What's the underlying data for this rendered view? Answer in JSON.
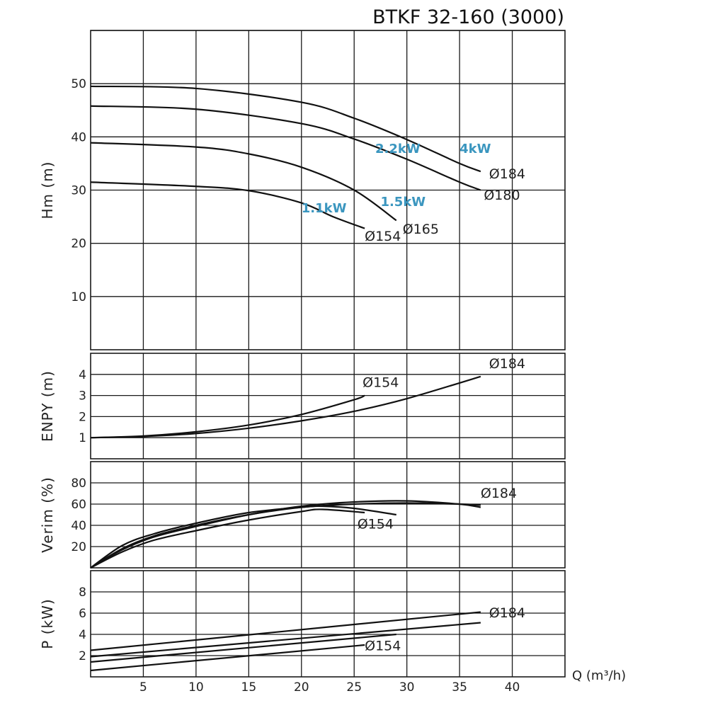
{
  "title": "BTKF 32-160 (3000)",
  "x_axis_label": "Q (m³/h)",
  "x_ticks": [
    5,
    10,
    15,
    20,
    25,
    30,
    35,
    40
  ],
  "colors": {
    "kw_label": "#3b96bf",
    "curve": "#111111",
    "grid": "#1a1a1a"
  },
  "chart_data": [
    {
      "id": "head",
      "type": "line",
      "ylabel": "Hm (m)",
      "xlim": [
        0,
        45
      ],
      "ylim": [
        0,
        60
      ],
      "grid": true,
      "y_ticks": [
        10,
        20,
        30,
        40,
        50
      ],
      "series": [
        {
          "name": "Ø 184",
          "x": [
            0,
            10,
            20,
            25,
            30,
            35,
            37
          ],
          "y": [
            49.5,
            49.1,
            46.5,
            43.5,
            39.5,
            35.0,
            33.5
          ]
        },
        {
          "name": "Ø 180",
          "x": [
            0,
            10,
            20,
            25,
            30,
            35,
            37
          ],
          "y": [
            45.8,
            45.2,
            42.5,
            39.6,
            35.8,
            31.5,
            30.0
          ]
        },
        {
          "name": "Ø 165",
          "x": [
            0,
            10,
            15,
            20,
            25,
            29
          ],
          "y": [
            38.9,
            38.1,
            36.8,
            34.3,
            30.0,
            24.3
          ]
        },
        {
          "name": "Ø 154",
          "x": [
            0,
            10,
            15,
            20,
            23,
            26
          ],
          "y": [
            31.5,
            30.7,
            29.9,
            27.6,
            25.0,
            22.8
          ]
        }
      ],
      "curve_labels": [
        {
          "text": "Ø184",
          "x": 37.8,
          "y": 32.2
        },
        {
          "text": "Ø180",
          "x": 37.3,
          "y": 28.2
        },
        {
          "text": "Ø165",
          "x": 29.6,
          "y": 21.8
        },
        {
          "text": "Ø154",
          "x": 26.0,
          "y": 20.5
        }
      ],
      "power_labels": [
        {
          "text": "4kW",
          "x": 35.0,
          "y": 37.0
        },
        {
          "text": "2.2kW",
          "x": 27.0,
          "y": 37.0
        },
        {
          "text": "1.5kW",
          "x": 27.5,
          "y": 27.0
        },
        {
          "text": "1.1kW",
          "x": 20.0,
          "y": 25.8
        }
      ]
    },
    {
      "id": "npsh",
      "type": "line",
      "ylabel": "ENPY (m)",
      "xlim": [
        0,
        45
      ],
      "ylim": [
        0,
        5
      ],
      "grid": true,
      "y_ticks": [
        1,
        2,
        3,
        4
      ],
      "series": [
        {
          "name": "Ø 154",
          "x": [
            0,
            5,
            10,
            15,
            20,
            25,
            26
          ],
          "y": [
            1.0,
            1.08,
            1.28,
            1.6,
            2.1,
            2.8,
            3.0
          ]
        },
        {
          "name": "Ø 184",
          "x": [
            0,
            5,
            10,
            15,
            20,
            25,
            30,
            37
          ],
          "y": [
            1.0,
            1.06,
            1.2,
            1.45,
            1.8,
            2.25,
            2.85,
            3.9
          ]
        }
      ],
      "curve_labels": [
        {
          "text": "Ø154",
          "x": 25.8,
          "y": 3.4
        },
        {
          "text": "Ø184",
          "x": 37.8,
          "y": 4.3
        }
      ]
    },
    {
      "id": "efficiency",
      "type": "line",
      "ylabel": "Verim (%)",
      "xlim": [
        0,
        45
      ],
      "ylim": [
        0,
        100
      ],
      "grid": true,
      "y_ticks": [
        20,
        40,
        60,
        80
      ],
      "series": [
        {
          "name": "Ø 184",
          "x": [
            0,
            3,
            6,
            10,
            15,
            20,
            25,
            30,
            35,
            37
          ],
          "y": [
            0,
            18,
            30,
            40,
            50,
            57,
            60,
            61,
            60,
            59
          ]
        },
        {
          "name": "Ø 180",
          "x": [
            0,
            3,
            6,
            10,
            15,
            20,
            25,
            30,
            35,
            37
          ],
          "y": [
            0,
            17,
            29,
            39,
            50,
            58,
            62,
            63,
            60,
            57
          ]
        },
        {
          "name": "Ø 165",
          "x": [
            0,
            3,
            6,
            10,
            15,
            20,
            22,
            25,
            29
          ],
          "y": [
            0,
            21,
            32,
            42,
            52,
            57,
            58,
            56,
            50
          ]
        },
        {
          "name": "Ø 154",
          "x": [
            0,
            3,
            6,
            10,
            15,
            20,
            22,
            26
          ],
          "y": [
            0,
            15,
            26,
            35,
            45,
            53,
            55,
            52
          ]
        }
      ],
      "curve_labels": [
        {
          "text": "Ø184",
          "x": 37.0,
          "y": 66
        },
        {
          "text": "Ø154",
          "x": 25.3,
          "y": 37
        }
      ]
    },
    {
      "id": "power",
      "type": "line",
      "ylabel": "P (kW)",
      "xlim": [
        0,
        45
      ],
      "ylim": [
        0,
        10
      ],
      "grid": true,
      "y_ticks": [
        2,
        4,
        6,
        8
      ],
      "series": [
        {
          "name": "Ø 184",
          "x": [
            0,
            37
          ],
          "y": [
            2.5,
            6.1
          ]
        },
        {
          "name": "Ø 180",
          "x": [
            0,
            37
          ],
          "y": [
            1.9,
            5.1
          ]
        },
        {
          "name": "Ø 165",
          "x": [
            0,
            29
          ],
          "y": [
            1.4,
            4.0
          ]
        },
        {
          "name": "Ø 154",
          "x": [
            0,
            26
          ],
          "y": [
            0.6,
            3.0
          ]
        }
      ],
      "curve_labels": [
        {
          "text": "Ø184",
          "x": 37.8,
          "y": 5.6
        },
        {
          "text": "Ø154",
          "x": 26.0,
          "y": 2.5
        }
      ]
    }
  ]
}
